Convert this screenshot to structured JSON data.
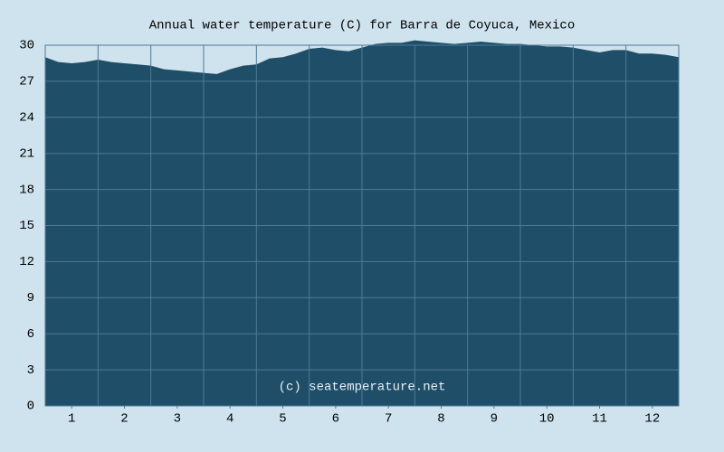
{
  "chart_data": {
    "type": "area",
    "title": "Annual water temperature (C) for Barra de Coyuca, Mexico",
    "annotation": "(c) seatemperature.net",
    "x": [
      0.5,
      0.75,
      1,
      1.25,
      1.5,
      1.75,
      2,
      2.25,
      2.5,
      2.75,
      3,
      3.25,
      3.5,
      3.75,
      4,
      4.25,
      4.5,
      4.75,
      5,
      5.25,
      5.5,
      5.75,
      6,
      6.25,
      6.5,
      6.75,
      7,
      7.25,
      7.5,
      7.75,
      8,
      8.25,
      8.5,
      8.75,
      9,
      9.25,
      9.5,
      9.75,
      10,
      10.25,
      10.5,
      10.75,
      11,
      11.25,
      11.5,
      11.75,
      12,
      12.25,
      12.5
    ],
    "values": [
      29.0,
      28.6,
      28.5,
      28.6,
      28.8,
      28.6,
      28.5,
      28.4,
      28.3,
      28.0,
      27.9,
      27.8,
      27.7,
      27.6,
      28.0,
      28.3,
      28.4,
      28.9,
      29.0,
      29.3,
      29.7,
      29.8,
      29.6,
      29.5,
      29.8,
      30.1,
      30.2,
      30.2,
      30.4,
      30.3,
      30.2,
      30.1,
      30.2,
      30.3,
      30.2,
      30.1,
      30.1,
      30.0,
      29.9,
      29.9,
      29.8,
      29.6,
      29.4,
      29.6,
      29.6,
      29.3,
      29.3,
      29.2,
      29.0
    ],
    "color": "#1f4e69",
    "xlim": [
      0.5,
      12.5
    ],
    "xticks": [
      1,
      2,
      3,
      4,
      5,
      6,
      7,
      8,
      9,
      10,
      11,
      12
    ],
    "ylim": [
      0,
      30
    ],
    "yticks": [
      0,
      3,
      6,
      9,
      12,
      15,
      18,
      21,
      24,
      27,
      30
    ],
    "grid": true
  }
}
